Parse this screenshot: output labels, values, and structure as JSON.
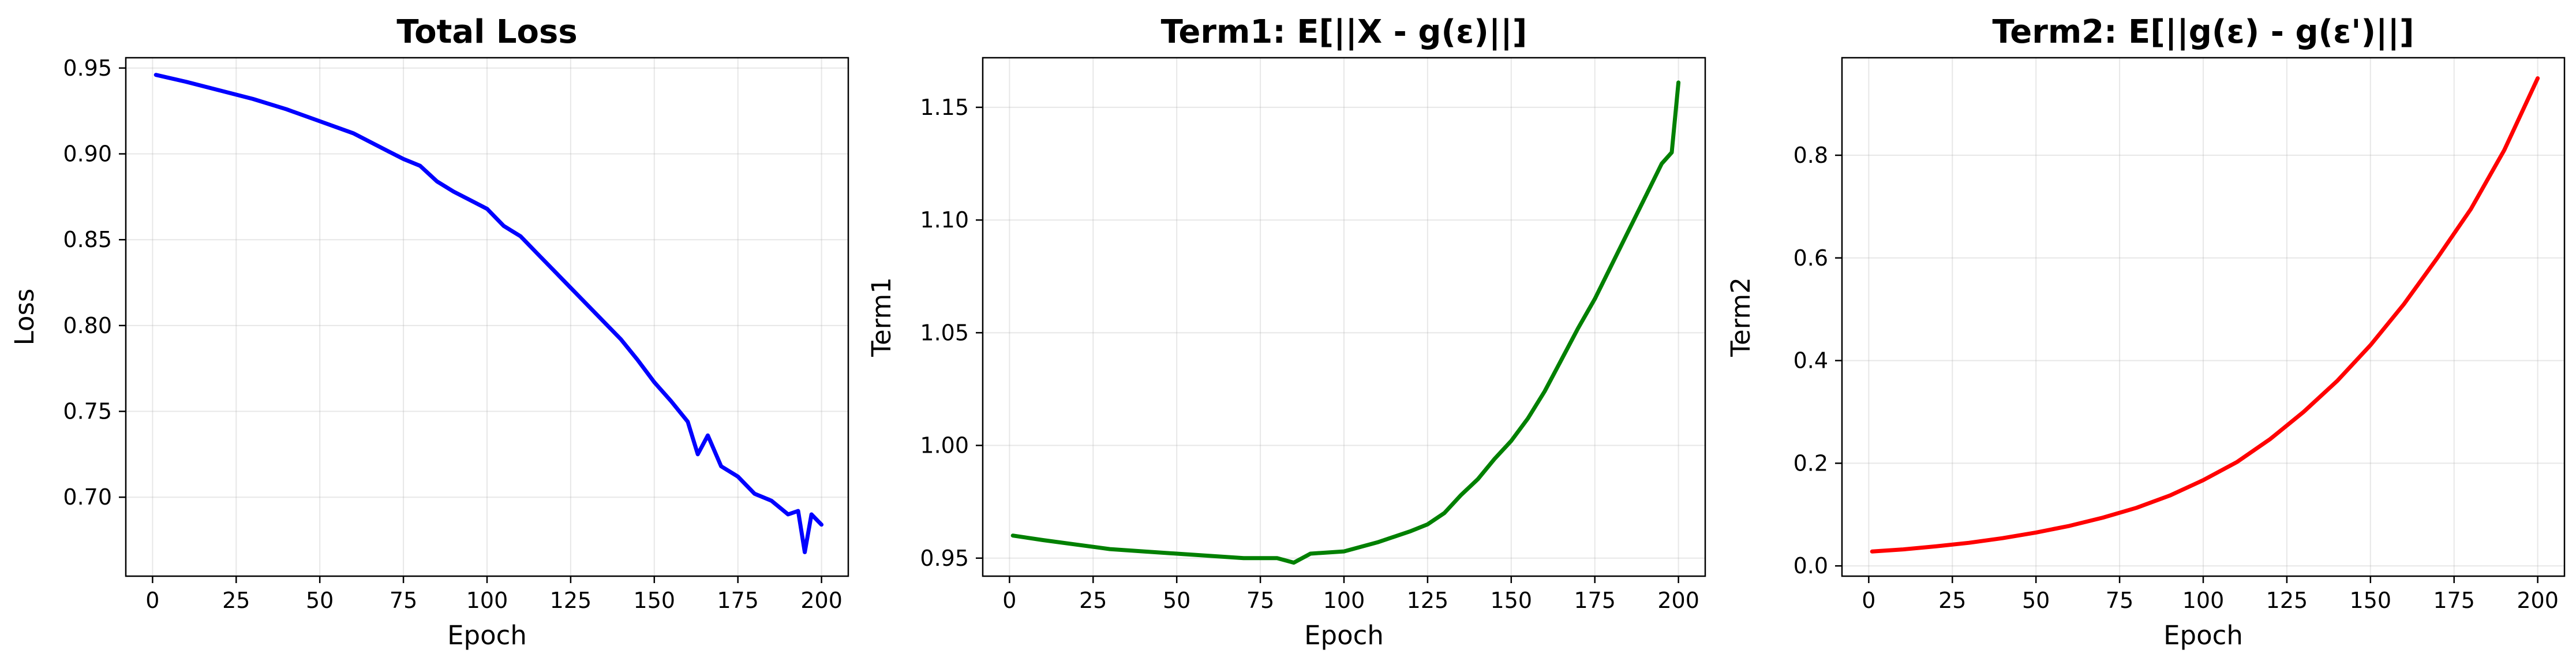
{
  "chart_data": [
    {
      "type": "line",
      "title": "Total Loss",
      "xlabel": "Epoch",
      "ylabel": "Loss",
      "xlim": [
        -8,
        208
      ],
      "ylim": [
        0.654,
        0.956
      ],
      "xticks": [
        0,
        25,
        50,
        75,
        100,
        125,
        150,
        175,
        200
      ],
      "yticks": [
        0.7,
        0.75,
        0.8,
        0.85,
        0.9,
        0.95
      ],
      "ytick_labels": [
        "0.70",
        "0.75",
        "0.80",
        "0.85",
        "0.90",
        "0.95"
      ],
      "grid": true,
      "series": [
        {
          "color": "#0000ff",
          "x": [
            1,
            10,
            20,
            30,
            40,
            50,
            60,
            70,
            75,
            80,
            85,
            90,
            95,
            100,
            105,
            110,
            115,
            120,
            125,
            130,
            135,
            140,
            145,
            150,
            155,
            160,
            163,
            166,
            170,
            175,
            180,
            185,
            190,
            193,
            195,
            197,
            200
          ],
          "y": [
            0.946,
            0.942,
            0.937,
            0.932,
            0.926,
            0.919,
            0.912,
            0.902,
            0.897,
            0.893,
            0.884,
            0.878,
            0.873,
            0.868,
            0.858,
            0.852,
            0.842,
            0.832,
            0.822,
            0.812,
            0.802,
            0.792,
            0.78,
            0.767,
            0.756,
            0.744,
            0.725,
            0.736,
            0.718,
            0.712,
            0.702,
            0.698,
            0.69,
            0.692,
            0.668,
            0.69,
            0.684
          ]
        }
      ]
    },
    {
      "type": "line",
      "title": "Term1: E[||X - g(ε)||]",
      "xlabel": "Epoch",
      "ylabel": "Term1",
      "xlim": [
        -8,
        208
      ],
      "ylim": [
        0.942,
        1.172
      ],
      "xticks": [
        0,
        25,
        50,
        75,
        100,
        125,
        150,
        175,
        200
      ],
      "yticks": [
        0.95,
        1.0,
        1.05,
        1.1,
        1.15
      ],
      "ytick_labels": [
        "0.95",
        "1.00",
        "1.05",
        "1.10",
        "1.15"
      ],
      "grid": true,
      "series": [
        {
          "color": "#008000",
          "x": [
            1,
            10,
            20,
            30,
            40,
            50,
            60,
            70,
            80,
            85,
            90,
            100,
            110,
            120,
            125,
            130,
            135,
            140,
            145,
            150,
            155,
            160,
            165,
            170,
            175,
            180,
            185,
            190,
            195,
            198,
            200
          ],
          "y": [
            0.96,
            0.958,
            0.956,
            0.954,
            0.953,
            0.952,
            0.951,
            0.95,
            0.95,
            0.948,
            0.952,
            0.953,
            0.957,
            0.962,
            0.965,
            0.97,
            0.978,
            0.985,
            0.994,
            1.002,
            1.012,
            1.024,
            1.038,
            1.052,
            1.065,
            1.08,
            1.095,
            1.11,
            1.125,
            1.13,
            1.161
          ]
        }
      ]
    },
    {
      "type": "line",
      "title": "Term2: E[||g(ε) - g(ε')||]",
      "xlabel": "Epoch",
      "ylabel": "Term2",
      "xlim": [
        -8,
        208
      ],
      "ylim": [
        -0.02,
        0.99
      ],
      "xticks": [
        0,
        25,
        50,
        75,
        100,
        125,
        150,
        175,
        200
      ],
      "yticks": [
        0.0,
        0.2,
        0.4,
        0.6,
        0.8
      ],
      "ytick_labels": [
        "0.0",
        "0.2",
        "0.4",
        "0.6",
        "0.8"
      ],
      "grid": true,
      "series": [
        {
          "color": "#ff0000",
          "x": [
            1,
            10,
            20,
            30,
            40,
            50,
            60,
            70,
            80,
            90,
            100,
            110,
            120,
            130,
            140,
            150,
            160,
            170,
            180,
            190,
            200
          ],
          "y": [
            0.028,
            0.032,
            0.038,
            0.045,
            0.054,
            0.065,
            0.078,
            0.094,
            0.113,
            0.137,
            0.167,
            0.202,
            0.247,
            0.3,
            0.36,
            0.43,
            0.51,
            0.6,
            0.695,
            0.81,
            0.95
          ]
        }
      ]
    }
  ]
}
